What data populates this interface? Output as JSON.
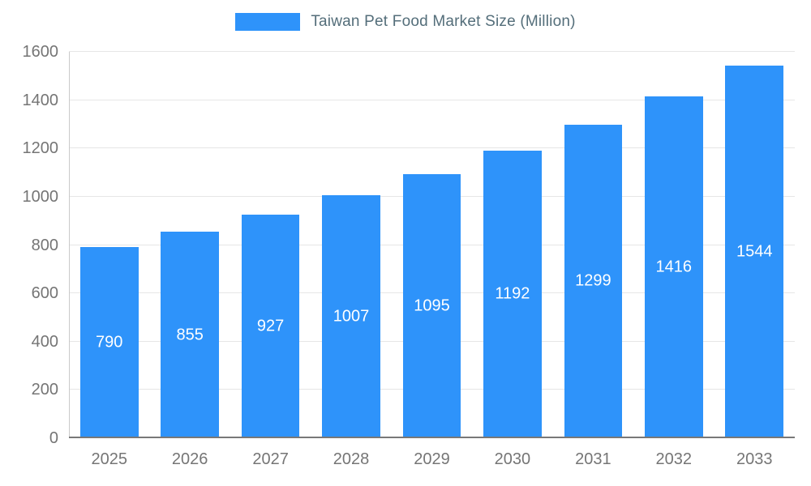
{
  "chart_data": {
    "type": "bar",
    "title": "Taiwan Pet Food Market Size (Million)",
    "series_name": "Taiwan Pet Food Market Size (Million)",
    "categories": [
      "2025",
      "2026",
      "2027",
      "2028",
      "2029",
      "2030",
      "2031",
      "2032",
      "2033"
    ],
    "values": [
      790,
      855,
      927,
      1007,
      1095,
      1192,
      1299,
      1416,
      1544
    ],
    "xlabel": "",
    "ylabel": "",
    "ylim": [
      0,
      1600
    ],
    "ytick_step": 200,
    "grid": true,
    "legend_position": "top",
    "colors": {
      "bar": "#2E93FA",
      "value_label": "#FFFFFF",
      "axis_label": "#757575",
      "title": "#546E7A",
      "gridline": "#E6E6E6",
      "baseline": "#787878",
      "axis_line": "#C9C9C9"
    }
  }
}
